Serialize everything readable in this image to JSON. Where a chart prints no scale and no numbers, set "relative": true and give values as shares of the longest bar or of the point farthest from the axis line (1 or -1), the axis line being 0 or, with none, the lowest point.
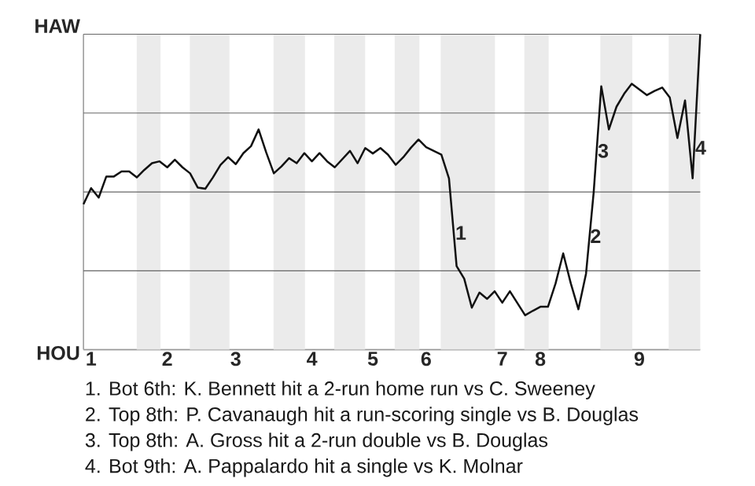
{
  "chart_data": {
    "type": "line",
    "relative": true,
    "categories": [
      null,
      "1",
      null,
      null,
      null,
      null,
      null,
      null,
      null,
      null,
      null,
      "2",
      null,
      null,
      null,
      null,
      null,
      null,
      null,
      null,
      "3",
      null,
      null,
      null,
      null,
      null,
      null,
      null,
      null,
      null,
      "4",
      null,
      null,
      null,
      null,
      null,
      null,
      null,
      "5",
      null,
      null,
      null,
      null,
      null,
      null,
      "6",
      null,
      null,
      null,
      null,
      null,
      null,
      null,
      null,
      null,
      "7",
      null,
      null,
      null,
      null,
      "8",
      null,
      null,
      null,
      null,
      null,
      null,
      null,
      null,
      null,
      null,
      null,
      null,
      "9",
      null,
      null,
      null,
      null,
      null,
      null,
      null,
      null
    ],
    "series": [
      {
        "color": "#111111",
        "values": [
          0.461,
          0.512,
          0.482,
          0.549,
          0.549,
          0.565,
          0.565,
          0.546,
          0.57,
          0.591,
          0.597,
          0.578,
          0.602,
          0.578,
          0.559,
          0.514,
          0.51,
          0.546,
          0.586,
          0.61,
          0.588,
          0.623,
          0.645,
          0.698,
          0.625,
          0.559,
          0.581,
          0.607,
          0.591,
          0.623,
          0.597,
          0.623,
          0.597,
          0.578,
          0.604,
          0.63,
          0.591,
          0.639,
          0.622,
          0.639,
          0.618,
          0.586,
          0.61,
          0.64,
          0.666,
          0.642,
          0.63,
          0.618,
          0.543,
          0.265,
          0.225,
          0.133,
          0.181,
          0.161,
          0.185,
          0.149,
          0.185,
          0.147,
          0.109,
          0.123,
          0.136,
          0.136,
          0.21,
          0.305,
          0.21,
          0.128,
          0.241,
          0.498,
          0.835,
          0.698,
          0.77,
          0.811,
          0.843,
          0.825,
          0.807,
          0.82,
          0.831,
          0.799,
          0.671,
          0.79,
          0.543,
          1
        ]
      }
    ],
    "marker": "none",
    "line_style": "solid",
    "ref_lines": [
      {
        "axis": "y",
        "value": 0.25,
        "color": "#666666"
      },
      {
        "axis": "y",
        "value": 0.5,
        "color": "#666666"
      },
      {
        "axis": "y",
        "value": 0.75,
        "color": "#666666"
      },
      {
        "axis": "y",
        "value": 1,
        "color": "#666666"
      }
    ],
    "annotations": [
      "HAW",
      "HOU",
      {
        "text": "1",
        "y": 0.37
      },
      {
        "text": "2",
        "y": 0.36
      },
      {
        "text": "3",
        "y": 0.63
      },
      {
        "text": "4",
        "y": 0.64
      },
      "1. Bot 6th: K. Bennett hit a 2-run home run vs C. Sweeney",
      "2. Top 8th: P. Cavanaugh hit a run-scoring single vs B. Douglas",
      "3. Top 8th: A. Gross hit a 2-run double vs B. Douglas",
      "4. Bot 9th: A. Pappalardo hit a single vs K. Molnar"
    ]
  }
}
